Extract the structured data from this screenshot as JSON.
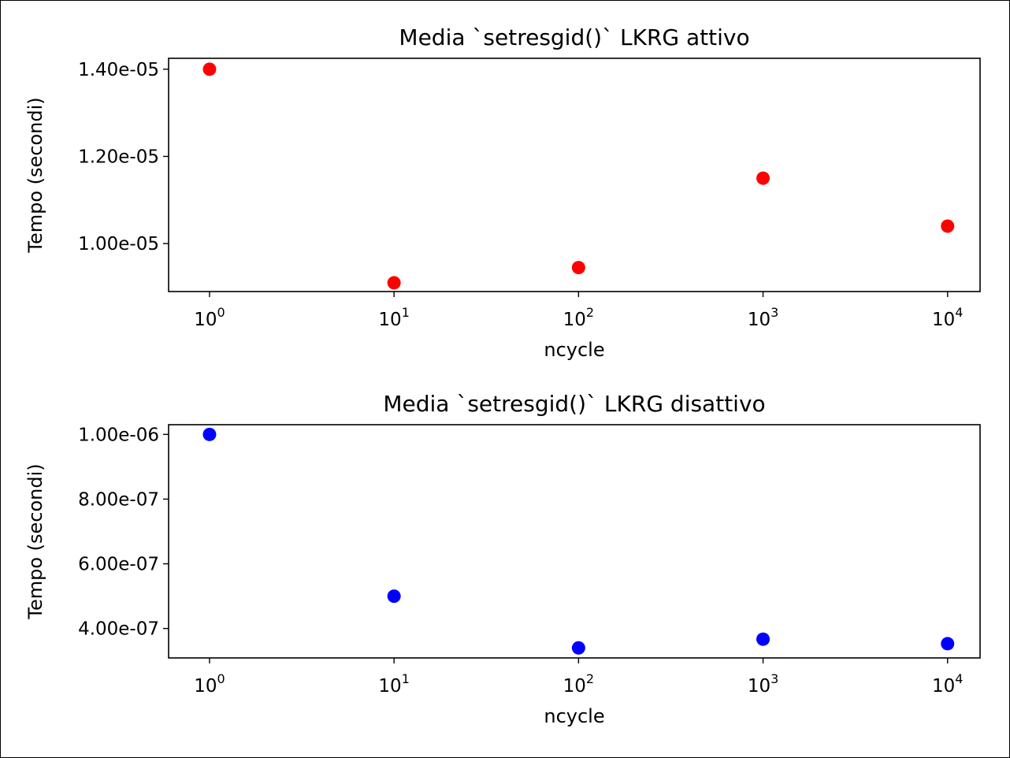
{
  "chart_data": [
    {
      "type": "scatter",
      "title": "Media `setresgid()` LKRG attivo",
      "xlabel": "ncycle",
      "ylabel": "Tempo (secondi)",
      "xscale": "log",
      "xlim": [
        0.6,
        15000
      ],
      "ylim": [
        8.9e-06,
        1.425e-05
      ],
      "x_ticks": [
        {
          "base": "10",
          "exp": "0",
          "value": 1
        },
        {
          "base": "10",
          "exp": "1",
          "value": 10
        },
        {
          "base": "10",
          "exp": "2",
          "value": 100
        },
        {
          "base": "10",
          "exp": "3",
          "value": 1000
        },
        {
          "base": "10",
          "exp": "4",
          "value": 10000
        }
      ],
      "y_ticks": [
        {
          "label": "1.00e-05",
          "value": 1e-05
        },
        {
          "label": "1.20e-05",
          "value": 1.2e-05
        },
        {
          "label": "1.40e-05",
          "value": 1.4e-05
        }
      ],
      "grid": false,
      "series": [
        {
          "color": "#ff0000",
          "x": [
            1,
            10,
            100,
            1000,
            10000
          ],
          "y": [
            1.4e-05,
            9.1e-06,
            9.45e-06,
            1.15e-05,
            1.04e-05
          ]
        }
      ]
    },
    {
      "type": "scatter",
      "title": "Media `setresgid()` LKRG disattivo",
      "xlabel": "ncycle",
      "ylabel": "Tempo (secondi)",
      "xscale": "log",
      "xlim": [
        0.6,
        15000
      ],
      "ylim": [
        3.09e-07,
        1.03e-06
      ],
      "x_ticks": [
        {
          "base": "10",
          "exp": "0",
          "value": 1
        },
        {
          "base": "10",
          "exp": "1",
          "value": 10
        },
        {
          "base": "10",
          "exp": "2",
          "value": 100
        },
        {
          "base": "10",
          "exp": "3",
          "value": 1000
        },
        {
          "base": "10",
          "exp": "4",
          "value": 10000
        }
      ],
      "y_ticks": [
        {
          "label": "4.00e-07",
          "value": 4e-07
        },
        {
          "label": "6.00e-07",
          "value": 6e-07
        },
        {
          "label": "8.00e-07",
          "value": 8e-07
        },
        {
          "label": "1.00e-06",
          "value": 1e-06
        }
      ],
      "grid": false,
      "series": [
        {
          "color": "#0000ff",
          "x": [
            1,
            10,
            100,
            1000,
            10000
          ],
          "y": [
            1e-06,
            5e-07,
            3.4e-07,
            3.67e-07,
            3.53e-07
          ]
        }
      ]
    }
  ]
}
